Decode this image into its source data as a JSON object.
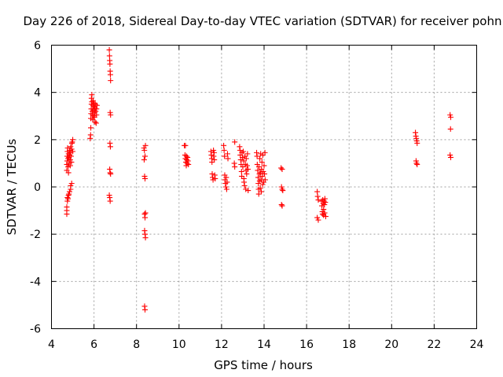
{
  "chart_data": {
    "type": "scatter",
    "title": "Day 226 of 2018, Sidereal Day-to-day VTEC variation (SDTVAR) for receiver pohn",
    "xlabel": "GPS time / hours",
    "ylabel": "SDTVAR / TECUs",
    "xlim": [
      4,
      24
    ],
    "ylim": [
      -6,
      6
    ],
    "grid": true,
    "x_ticks": [
      "4",
      "6",
      "8",
      "10",
      "12",
      "14",
      "16",
      "18",
      "20",
      "22",
      "24"
    ],
    "y_ticks": [
      "-6",
      "-4",
      "-2",
      "0",
      "2",
      "4",
      "6"
    ],
    "marker": "+",
    "marker_color": "#ff0000",
    "series": [
      {
        "name": "SDTVAR",
        "points": [
          [
            4.72,
            -1.15
          ],
          [
            4.72,
            -1.0
          ],
          [
            4.72,
            -0.85
          ],
          [
            4.75,
            -0.6
          ],
          [
            4.75,
            -0.45
          ],
          [
            4.78,
            -0.5
          ],
          [
            4.8,
            -0.35
          ],
          [
            4.82,
            -0.3
          ],
          [
            4.85,
            -0.2
          ],
          [
            4.9,
            -0.1
          ],
          [
            4.9,
            0.05
          ],
          [
            4.95,
            0.15
          ],
          [
            4.72,
            0.7
          ],
          [
            4.72,
            0.95
          ],
          [
            4.74,
            1.1
          ],
          [
            4.74,
            1.3
          ],
          [
            4.75,
            1.5
          ],
          [
            4.76,
            1.65
          ],
          [
            4.78,
            0.85
          ],
          [
            4.78,
            1.2
          ],
          [
            4.8,
            1.4
          ],
          [
            4.8,
            0.6
          ],
          [
            4.82,
            1.0
          ],
          [
            4.82,
            1.25
          ],
          [
            4.85,
            1.35
          ],
          [
            4.85,
            1.55
          ],
          [
            4.88,
            0.9
          ],
          [
            4.88,
            1.15
          ],
          [
            4.9,
            1.45
          ],
          [
            4.9,
            1.7
          ],
          [
            4.92,
            1.3
          ],
          [
            4.94,
            1.05
          ],
          [
            4.95,
            1.6
          ],
          [
            4.96,
            1.85
          ],
          [
            4.98,
            1.9
          ],
          [
            5.0,
            2.0
          ],
          [
            5.0,
            1.5
          ],
          [
            5.82,
            2.05
          ],
          [
            5.84,
            2.2
          ],
          [
            5.85,
            2.5
          ],
          [
            5.85,
            2.9
          ],
          [
            5.86,
            3.1
          ],
          [
            5.87,
            3.3
          ],
          [
            5.88,
            3.5
          ],
          [
            5.88,
            3.75
          ],
          [
            5.9,
            3.9
          ],
          [
            5.9,
            3.6
          ],
          [
            5.92,
            3.2
          ],
          [
            5.93,
            3.05
          ],
          [
            5.94,
            2.85
          ],
          [
            5.95,
            3.45
          ],
          [
            5.96,
            3.65
          ],
          [
            5.97,
            3.25
          ],
          [
            5.98,
            3.0
          ],
          [
            6.0,
            3.4
          ],
          [
            6.0,
            3.55
          ],
          [
            6.02,
            2.95
          ],
          [
            6.03,
            3.15
          ],
          [
            6.04,
            3.35
          ],
          [
            6.05,
            2.75
          ],
          [
            6.06,
            3.5
          ],
          [
            6.08,
            3.2
          ],
          [
            6.1,
            2.7
          ],
          [
            6.12,
            3.05
          ],
          [
            6.12,
            3.3
          ],
          [
            6.14,
            3.45
          ],
          [
            6.72,
            5.8
          ],
          [
            6.73,
            5.55
          ],
          [
            6.74,
            5.35
          ],
          [
            6.75,
            5.2
          ],
          [
            6.76,
            4.9
          ],
          [
            6.77,
            4.75
          ],
          [
            6.78,
            4.5
          ],
          [
            6.76,
            3.15
          ],
          [
            6.78,
            3.05
          ],
          [
            6.75,
            1.85
          ],
          [
            6.77,
            1.7
          ],
          [
            6.74,
            0.75
          ],
          [
            6.76,
            0.6
          ],
          [
            6.78,
            0.55
          ],
          [
            6.72,
            -0.35
          ],
          [
            6.74,
            -0.45
          ],
          [
            6.76,
            -0.6
          ],
          [
            8.35,
            1.65
          ],
          [
            8.37,
            1.55
          ],
          [
            8.4,
            1.3
          ],
          [
            8.42,
            1.75
          ],
          [
            8.36,
            1.15
          ],
          [
            8.38,
            0.45
          ],
          [
            8.4,
            0.35
          ],
          [
            8.38,
            -1.15
          ],
          [
            8.4,
            -1.3
          ],
          [
            8.42,
            -1.1
          ],
          [
            8.38,
            -1.85
          ],
          [
            8.4,
            -2.0
          ],
          [
            8.42,
            -2.15
          ],
          [
            8.38,
            -5.05
          ],
          [
            8.4,
            -5.2
          ],
          [
            10.25,
            1.75
          ],
          [
            10.3,
            1.75
          ],
          [
            10.28,
            1.35
          ],
          [
            10.3,
            1.2
          ],
          [
            10.32,
            1.05
          ],
          [
            10.34,
            0.9
          ],
          [
            10.35,
            1.3
          ],
          [
            10.36,
            1.15
          ],
          [
            10.38,
            1.0
          ],
          [
            10.4,
            1.25
          ],
          [
            10.42,
            1.1
          ],
          [
            10.44,
            0.95
          ],
          [
            11.5,
            1.5
          ],
          [
            11.52,
            1.35
          ],
          [
            11.54,
            1.2
          ],
          [
            11.55,
            1.05
          ],
          [
            11.56,
            0.55
          ],
          [
            11.58,
            0.4
          ],
          [
            11.6,
            0.3
          ],
          [
            11.62,
            1.55
          ],
          [
            11.63,
            1.3
          ],
          [
            11.65,
            1.45
          ],
          [
            11.66,
            1.15
          ],
          [
            11.68,
            0.5
          ],
          [
            11.7,
            0.35
          ],
          [
            12.1,
            1.75
          ],
          [
            12.12,
            1.55
          ],
          [
            12.14,
            1.3
          ],
          [
            12.15,
            0.5
          ],
          [
            12.16,
            0.3
          ],
          [
            12.18,
            0.15
          ],
          [
            12.2,
            0.0
          ],
          [
            12.22,
            0.4
          ],
          [
            12.24,
            -0.1
          ],
          [
            12.26,
            0.2
          ],
          [
            12.28,
            1.4
          ],
          [
            12.3,
            1.2
          ],
          [
            12.62,
            1.9
          ],
          [
            12.6,
            1.0
          ],
          [
            12.62,
            0.85
          ],
          [
            12.85,
            1.7
          ],
          [
            12.87,
            1.55
          ],
          [
            12.88,
            1.35
          ],
          [
            12.9,
            1.15
          ],
          [
            12.92,
            0.95
          ],
          [
            12.94,
            0.65
          ],
          [
            12.95,
            0.45
          ],
          [
            12.96,
            1.45
          ],
          [
            12.98,
            1.25
          ],
          [
            13.0,
            0.85
          ],
          [
            13.02,
            1.5
          ],
          [
            13.04,
            1.1
          ],
          [
            13.05,
            0.35
          ],
          [
            13.06,
            0.2
          ],
          [
            13.08,
            0.05
          ],
          [
            13.1,
            1.3
          ],
          [
            13.12,
            0.95
          ],
          [
            13.14,
            -0.1
          ],
          [
            13.15,
            0.7
          ],
          [
            13.16,
            1.2
          ],
          [
            13.18,
            0.55
          ],
          [
            13.2,
            0.9
          ],
          [
            13.22,
            1.4
          ],
          [
            13.24,
            0.75
          ],
          [
            13.25,
            -0.15
          ],
          [
            13.65,
            1.45
          ],
          [
            13.67,
            1.3
          ],
          [
            13.68,
            0.95
          ],
          [
            13.7,
            0.7
          ],
          [
            13.72,
            0.4
          ],
          [
            13.73,
            0.15
          ],
          [
            13.74,
            -0.1
          ],
          [
            13.75,
            -0.3
          ],
          [
            13.76,
            0.85
          ],
          [
            13.78,
            0.55
          ],
          [
            13.79,
            0.25
          ],
          [
            13.8,
            1.2
          ],
          [
            13.82,
            -0.05
          ],
          [
            13.83,
            0.6
          ],
          [
            13.84,
            1.4
          ],
          [
            13.86,
            0.3
          ],
          [
            13.87,
            -0.2
          ],
          [
            13.88,
            0.75
          ],
          [
            13.9,
            1.05
          ],
          [
            13.92,
            0.45
          ],
          [
            13.93,
            0.1
          ],
          [
            13.94,
            1.35
          ],
          [
            13.96,
            0.65
          ],
          [
            13.98,
            0.2
          ],
          [
            14.0,
            0.9
          ],
          [
            14.02,
            0.55
          ],
          [
            14.04,
            1.45
          ],
          [
            14.05,
            0.3
          ],
          [
            14.8,
            0.8
          ],
          [
            14.85,
            0.75
          ],
          [
            14.82,
            0.0
          ],
          [
            14.85,
            -0.1
          ],
          [
            14.88,
            -0.15
          ],
          [
            14.82,
            -0.75
          ],
          [
            14.85,
            -0.8
          ],
          [
            16.5,
            -0.2
          ],
          [
            16.52,
            -0.4
          ],
          [
            16.55,
            -0.55
          ],
          [
            16.5,
            -1.3
          ],
          [
            16.55,
            -1.4
          ],
          [
            16.7,
            -0.6
          ],
          [
            16.72,
            -0.8
          ],
          [
            16.74,
            -1.05
          ],
          [
            16.75,
            -1.15
          ],
          [
            16.76,
            -0.55
          ],
          [
            16.78,
            -0.7
          ],
          [
            16.8,
            -0.95
          ],
          [
            16.8,
            -1.2
          ],
          [
            16.82,
            -0.6
          ],
          [
            16.84,
            -0.75
          ],
          [
            16.85,
            -1.1
          ],
          [
            16.86,
            -0.5
          ],
          [
            16.88,
            -0.65
          ],
          [
            16.9,
            -1.25
          ],
          [
            21.12,
            2.3
          ],
          [
            21.14,
            2.15
          ],
          [
            21.16,
            2.05
          ],
          [
            21.18,
            1.95
          ],
          [
            21.2,
            1.85
          ],
          [
            21.15,
            1.1
          ],
          [
            21.17,
            1.0
          ],
          [
            21.2,
            0.95
          ],
          [
            22.75,
            3.05
          ],
          [
            22.78,
            2.95
          ],
          [
            22.77,
            2.45
          ],
          [
            22.75,
            1.35
          ],
          [
            22.78,
            1.25
          ]
        ]
      }
    ]
  }
}
